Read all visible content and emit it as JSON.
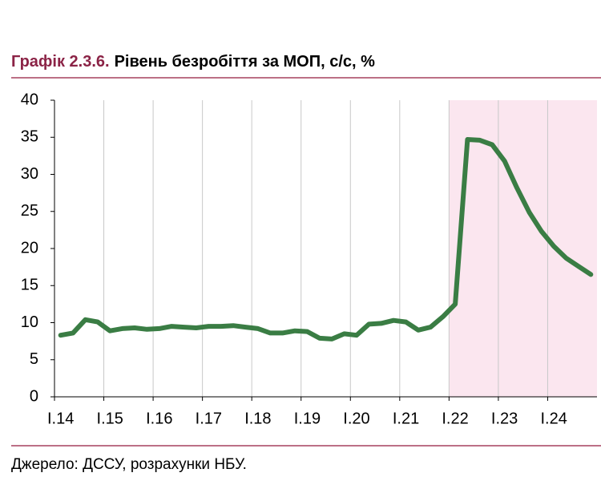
{
  "chart_data": {
    "type": "line",
    "title_label": "Графік 2.3.6.",
    "title": "Рівень безробіття за МОП, с/с, %",
    "source": "Джерело: ДССУ, розрахунки НБУ.",
    "categories": [
      "I.14",
      null,
      null,
      null,
      "I.15",
      null,
      null,
      null,
      "I.16",
      null,
      null,
      null,
      "I.17",
      null,
      null,
      null,
      "I.18",
      null,
      null,
      null,
      "I.19",
      null,
      null,
      null,
      "I.20",
      null,
      null,
      null,
      "I.21",
      null,
      null,
      null,
      "I.22",
      null,
      null,
      null,
      "I.23",
      null,
      null,
      null,
      "I.24",
      null,
      null,
      null
    ],
    "series": [
      {
        "color": "#3a7d44",
        "values": [
          8.3,
          8.6,
          10.4,
          10.1,
          8.9,
          9.2,
          9.3,
          9.1,
          9.2,
          9.5,
          9.4,
          9.3,
          9.5,
          9.5,
          9.6,
          9.4,
          9.2,
          8.6,
          8.6,
          8.9,
          8.8,
          7.9,
          7.8,
          8.5,
          8.3,
          9.8,
          9.9,
          10.3,
          10.1,
          9.0,
          9.4,
          10.8,
          12.5,
          34.7,
          34.6,
          34.0,
          31.8,
          28.2,
          24.9,
          22.3,
          20.3,
          18.7,
          17.6,
          16.5
        ]
      }
    ],
    "ylim": [
      0,
      40
    ],
    "yticks": [
      0,
      5,
      10,
      15,
      20,
      25,
      30,
      35,
      40
    ],
    "grid": {
      "x": true,
      "y": false
    },
    "highlight": {
      "from": "I.22",
      "color": "#fbe6ef"
    }
  }
}
